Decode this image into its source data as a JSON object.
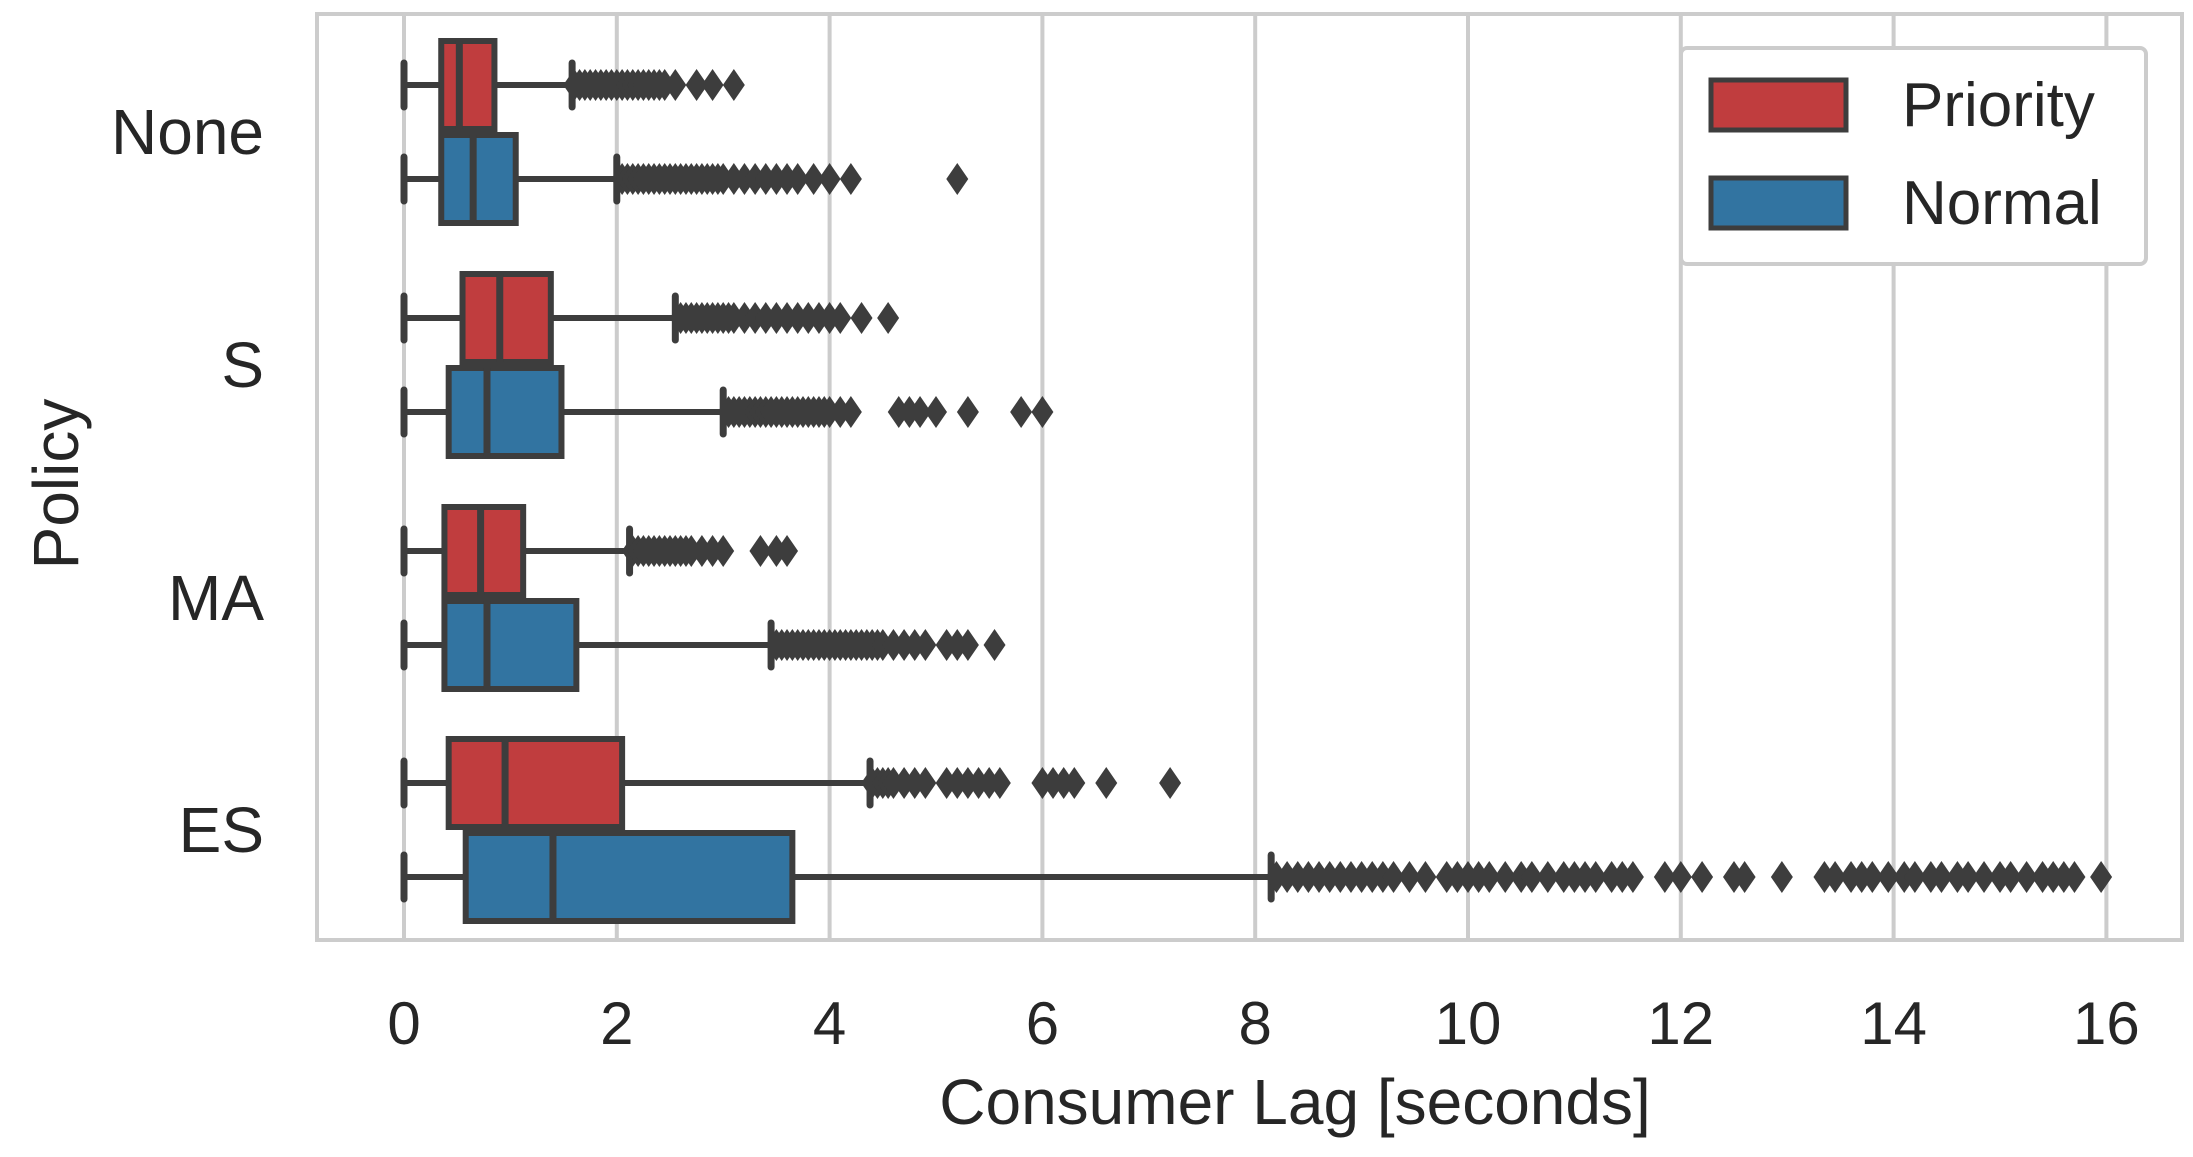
{
  "chart_data": {
    "type": "boxplot",
    "orientation": "horizontal",
    "xlabel": "Consumer Lag [seconds]",
    "ylabel": "Policy",
    "xlim": [
      -0.8,
      16.7
    ],
    "xticks": [
      0,
      2,
      4,
      6,
      8,
      10,
      12,
      14,
      16
    ],
    "grid": "vertical",
    "legend_position": "top-right",
    "categories": [
      "None",
      "S",
      "MA",
      "ES"
    ],
    "series": [
      {
        "name": "Priority",
        "color": "#c03d3e",
        "boxes": [
          {
            "category": "None",
            "whisker_low": 0.0,
            "q1": 0.35,
            "median": 0.52,
            "q3": 0.85,
            "whisker_high": 1.58,
            "outliers": [
              1.6,
              1.65,
              1.7,
              1.75,
              1.8,
              1.85,
              1.9,
              1.95,
              2.0,
              2.05,
              2.1,
              2.15,
              2.2,
              2.25,
              2.3,
              2.35,
              2.4,
              2.45,
              2.55,
              2.75,
              2.9,
              3.1
            ]
          },
          {
            "category": "S",
            "whisker_low": 0.0,
            "q1": 0.55,
            "median": 0.9,
            "q3": 1.38,
            "whisker_high": 2.55,
            "outliers": [
              2.6,
              2.65,
              2.7,
              2.75,
              2.8,
              2.85,
              2.9,
              2.95,
              3.0,
              3.05,
              3.1,
              3.2,
              3.3,
              3.4,
              3.5,
              3.6,
              3.7,
              3.8,
              3.9,
              4.0,
              4.1,
              4.3,
              4.55
            ]
          },
          {
            "category": "MA",
            "whisker_low": 0.0,
            "q1": 0.38,
            "median": 0.72,
            "q3": 1.12,
            "whisker_high": 2.12,
            "outliers": [
              2.15,
              2.2,
              2.25,
              2.3,
              2.35,
              2.4,
              2.45,
              2.5,
              2.55,
              2.6,
              2.65,
              2.7,
              2.8,
              2.9,
              3.0,
              3.35,
              3.5,
              3.6
            ]
          },
          {
            "category": "ES",
            "whisker_low": 0.0,
            "q1": 0.42,
            "median": 0.95,
            "q3": 2.05,
            "whisker_high": 4.38,
            "outliers": [
              4.4,
              4.45,
              4.5,
              4.55,
              4.6,
              4.7,
              4.8,
              4.9,
              5.1,
              5.2,
              5.3,
              5.4,
              5.5,
              5.6,
              6.0,
              6.1,
              6.2,
              6.3,
              6.6,
              7.2
            ]
          }
        ]
      },
      {
        "name": "Normal",
        "color": "#3274a1",
        "boxes": [
          {
            "category": "None",
            "whisker_low": 0.0,
            "q1": 0.35,
            "median": 0.65,
            "q3": 1.05,
            "whisker_high": 2.0,
            "outliers": [
              2.05,
              2.1,
              2.15,
              2.2,
              2.25,
              2.3,
              2.35,
              2.4,
              2.45,
              2.5,
              2.55,
              2.6,
              2.65,
              2.7,
              2.75,
              2.8,
              2.85,
              2.9,
              2.95,
              3.0,
              3.1,
              3.2,
              3.3,
              3.4,
              3.5,
              3.6,
              3.7,
              3.85,
              4.0,
              4.2,
              5.2
            ]
          },
          {
            "category": "S",
            "whisker_low": 0.0,
            "q1": 0.42,
            "median": 0.78,
            "q3": 1.48,
            "whisker_high": 3.0,
            "outliers": [
              3.05,
              3.1,
              3.15,
              3.2,
              3.25,
              3.3,
              3.35,
              3.4,
              3.45,
              3.5,
              3.55,
              3.6,
              3.65,
              3.7,
              3.75,
              3.8,
              3.85,
              3.9,
              3.95,
              4.0,
              4.1,
              4.2,
              4.65,
              4.75,
              4.85,
              5.0,
              5.3,
              5.8,
              6.0
            ]
          },
          {
            "category": "MA",
            "whisker_low": 0.0,
            "q1": 0.38,
            "median": 0.78,
            "q3": 1.62,
            "whisker_high": 3.45,
            "outliers": [
              3.5,
              3.55,
              3.6,
              3.65,
              3.7,
              3.75,
              3.8,
              3.85,
              3.9,
              3.95,
              4.0,
              4.05,
              4.1,
              4.15,
              4.2,
              4.25,
              4.3,
              4.35,
              4.4,
              4.45,
              4.5,
              4.6,
              4.7,
              4.8,
              4.9,
              5.1,
              5.2,
              5.3,
              5.55
            ]
          },
          {
            "category": "ES",
            "whisker_low": 0.0,
            "q1": 0.58,
            "median": 1.4,
            "q3": 3.65,
            "whisker_high": 8.15,
            "outliers": [
              8.2,
              8.3,
              8.4,
              8.5,
              8.6,
              8.7,
              8.8,
              8.9,
              9.0,
              9.1,
              9.2,
              9.3,
              9.45,
              9.6,
              9.8,
              9.9,
              10.0,
              10.1,
              10.2,
              10.35,
              10.5,
              10.6,
              10.75,
              10.9,
              11.0,
              11.1,
              11.2,
              11.35,
              11.45,
              11.55,
              11.85,
              12.0,
              12.2,
              12.5,
              12.6,
              12.95,
              13.35,
              13.45,
              13.6,
              13.7,
              13.8,
              13.95,
              14.1,
              14.2,
              14.35,
              14.45,
              14.6,
              14.7,
              14.85,
              15.0,
              15.1,
              15.25,
              15.4,
              15.5,
              15.6,
              15.7,
              15.95
            ]
          }
        ]
      }
    ]
  }
}
